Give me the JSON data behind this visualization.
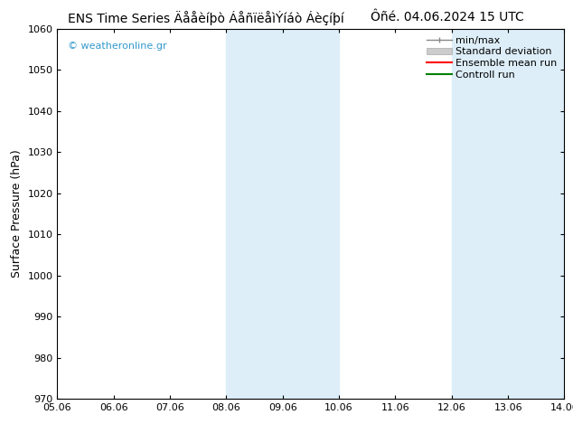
{
  "title": "ENS Time Series Äååèíþò ÁåñïëåìÝíáò Áèçíþí",
  "title_right": "Ôñé. 04.06.2024 15 UTC",
  "ylabel": "Surface Pressure (hPa)",
  "ylim": [
    970,
    1060
  ],
  "yticks": [
    970,
    980,
    990,
    1000,
    1010,
    1020,
    1030,
    1040,
    1050,
    1060
  ],
  "x_labels": [
    "05.06",
    "06.06",
    "07.06",
    "08.06",
    "09.06",
    "10.06",
    "11.06",
    "12.06",
    "13.06",
    "14.06"
  ],
  "shade_regions": [
    {
      "xstart": 3,
      "xend": 5,
      "color": "#ddeef8"
    },
    {
      "xstart": 7,
      "xend": 9,
      "color": "#ddeef8"
    }
  ],
  "watermark": "© weatheronline.gr",
  "background_color": "#ffffff",
  "plot_bg_color": "#ffffff",
  "title_fontsize": 10,
  "tick_fontsize": 8,
  "ylabel_fontsize": 9,
  "legend_fontsize": 8
}
